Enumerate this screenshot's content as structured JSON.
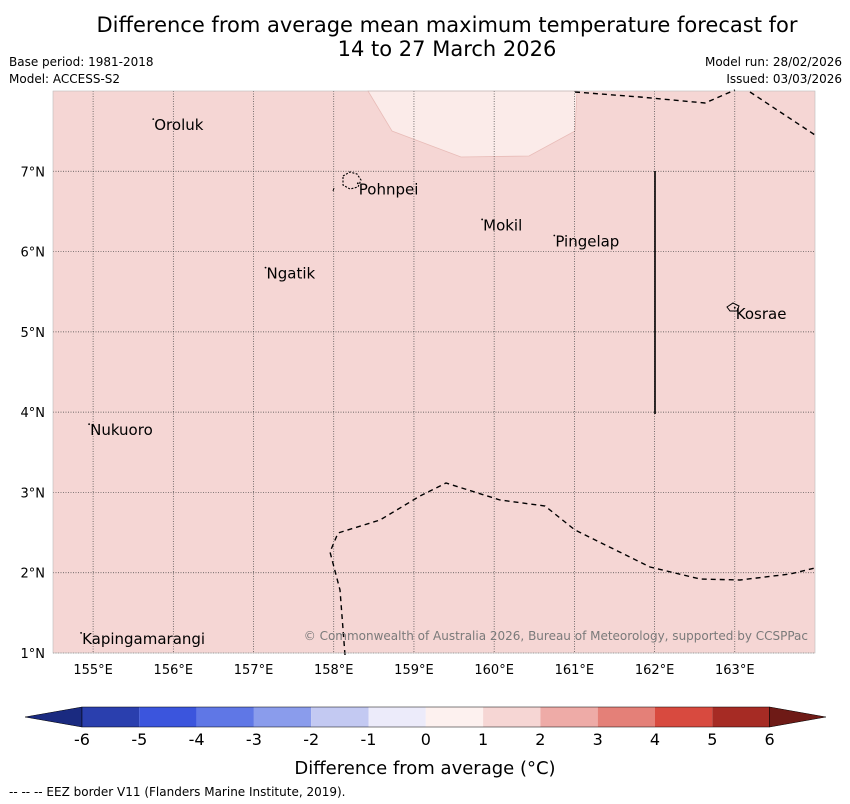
{
  "header": {
    "title_line1": "Difference from average mean maximum temperature forecast for",
    "title_line2": "14 to 27 March 2026",
    "base_period": "Base period: 1981-2018",
    "model": "Model: ACCESS-S2",
    "model_run": "Model run: 28/02/2026",
    "issued": "Issued: 03/03/2026"
  },
  "map": {
    "lon_range": [
      154.5,
      164.0
    ],
    "lat_range": [
      1.0,
      8.0
    ],
    "lon_ticks": [
      "155°E",
      "156°E",
      "157°E",
      "158°E",
      "159°E",
      "160°E",
      "161°E",
      "162°E",
      "163°E"
    ],
    "lat_ticks": [
      "1°N",
      "2°N",
      "3°N",
      "4°N",
      "5°N",
      "6°N",
      "7°N"
    ],
    "background_class_color": "#f5d6d4",
    "lighter_patch_color": "#fbebe9",
    "copyright": "© Commonwealth of Australia 2026, Bureau of Meteorology, supported by CCSPPac",
    "places": [
      {
        "name": "Oroluk",
        "lon": 155.75,
        "lat": 7.65
      },
      {
        "name": "Pohnpei",
        "lon": 158.3,
        "lat": 6.85
      },
      {
        "name": "Mokil",
        "lon": 159.85,
        "lat": 6.4
      },
      {
        "name": "Pingelap",
        "lon": 160.75,
        "lat": 6.2
      },
      {
        "name": "Ngatik",
        "lon": 157.15,
        "lat": 5.8
      },
      {
        "name": "Kosrae",
        "lon": 163.0,
        "lat": 5.3
      },
      {
        "name": "Nukuoro",
        "lon": 154.95,
        "lat": 3.85
      },
      {
        "name": "Kapingamarangi",
        "lon": 154.85,
        "lat": 1.25
      }
    ]
  },
  "colorbar": {
    "title": "Difference from average (°C)",
    "labels": [
      "-6",
      "-5",
      "-4",
      "-3",
      "-2",
      "-1",
      "0",
      "1",
      "2",
      "3",
      "4",
      "5",
      "6"
    ],
    "colors": [
      "#2a3fae",
      "#3b55dd",
      "#5f77e6",
      "#8a9cec",
      "#c3c9f2",
      "#ecebfa",
      "#fdf1ef",
      "#f6d6d4",
      "#eeaba7",
      "#e48078",
      "#d84a3f",
      "#a62b24"
    ],
    "low_extend_color": "#1a2a80",
    "high_extend_color": "#6e1a16"
  },
  "footnote": "--  --  -- EEZ border V11 (Flanders Marine Institute, 2019)."
}
